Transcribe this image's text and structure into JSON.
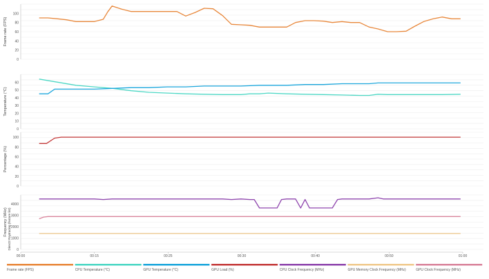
{
  "chart_data": {
    "type": "line",
    "x_ticks": [
      "00:00",
      "00:15",
      "00:25",
      "00:30",
      "00:40",
      "00:50",
      "01:00"
    ],
    "legend_placement": "bottom",
    "grid": true,
    "x_range": [
      0,
      60
    ],
    "panels": [
      {
        "ylabel": "Frame rate (FPS)",
        "ylim": [
          0,
          120
        ],
        "y_ticks": [
          "0",
          "20",
          "40",
          "60",
          "80",
          "100"
        ],
        "series": [
          {
            "name": "Frame rate (FPS)",
            "color": "#e8873a",
            "x": [
              2.5,
              3.7,
              5.0,
              6.2,
              7.5,
              8.7,
              10.0,
              11.2,
              11.8,
              12.4,
              13.7,
              15.0,
              17.4,
              19.9,
              21.2,
              22.4,
              23.7,
              24.9,
              26.1,
              27.4,
              28.6,
              29.9,
              31.1,
              32.4,
              33.6,
              34.8,
              36.1,
              37.3,
              38.6,
              39.8,
              41.1,
              42.3,
              43.6,
              44.8,
              46.0,
              47.3,
              48.5,
              49.8,
              51.0,
              52.3,
              53.5,
              54.7,
              56.0,
              57.2,
              58.5,
              59.7
            ],
            "values": [
              90,
              90,
              88,
              86,
              82,
              82,
              82,
              87,
              103,
              116,
              109,
              104,
              104,
              104,
              104,
              94,
              102,
              111,
              110,
              95,
              76,
              75,
              74,
              70,
              70,
              70,
              70,
              80,
              84,
              84,
              83,
              80,
              82,
              80,
              80,
              70,
              66,
              60,
              60,
              61,
              72,
              82,
              88,
              92,
              88,
              88
            ]
          }
        ]
      },
      {
        "ylabel": "Temperature (°C)",
        "ylim": [
          0,
          70
        ],
        "y_ticks": [
          "0",
          "10",
          "20",
          "30",
          "40",
          "50",
          "60"
        ],
        "series": [
          {
            "name": "CPU Temperature (°C)",
            "color": "#4bd7c4",
            "x": [
              2.5,
              5.0,
              7.5,
              10.0,
              12.5,
              15.0,
              17.4,
              19.9,
              22.4,
              24.9,
              27.4,
              29.9,
              31.1,
              32.4,
              33.6,
              36.1,
              38.6,
              41.1,
              43.6,
              46.0,
              47.3,
              48.5,
              49.8,
              51.0,
              52.3,
              54.7,
              57.2,
              59.7
            ],
            "values": [
              64,
              60,
              56,
              54,
              52,
              49,
              47,
              46,
              45,
              44.5,
              44,
              44,
              45,
              45,
              46,
              45,
              44.5,
              44,
              43.5,
              43,
              43,
              44.5,
              44,
              44,
              44,
              44,
              44,
              44.5
            ]
          },
          {
            "name": "GPU Temperature (°C)",
            "color": "#1aa6dc",
            "x": [
              2.5,
              3.7,
              4.6,
              7.5,
              10.0,
              12.5,
              15.0,
              17.4,
              19.9,
              22.4,
              24.9,
              27.4,
              29.9,
              32.4,
              33.6,
              36.1,
              38.6,
              41.1,
              43.6,
              46.0,
              47.3,
              48.5,
              49.8,
              51.0,
              52.3,
              53.5,
              54.7,
              57.2,
              59.7
            ],
            "values": [
              45,
              45,
              51,
              51,
              51,
              52,
              53,
              53,
              54,
              54,
              55,
              55,
              55,
              56,
              56,
              56,
              57,
              57,
              58,
              58,
              58,
              59,
              59,
              59,
              59,
              59,
              59,
              59,
              59
            ]
          }
        ]
      },
      {
        "ylabel": "Percentage (%)",
        "ylim": [
          0,
          110
        ],
        "y_ticks": [
          "0",
          "20",
          "40",
          "60",
          "80",
          "100"
        ],
        "series": [
          {
            "name": "GPU Load (%)",
            "color": "#c43a3a",
            "x": [
              2.5,
              3.5,
              4.6,
              5.5,
              10.0,
              20.0,
              30.0,
              40.0,
              50.0,
              59.7
            ],
            "values": [
              87,
              87,
              98,
              100,
              100,
              100,
              100,
              100,
              100,
              100
            ]
          }
        ]
      },
      {
        "ylabel": "Frequency (MHz)",
        "ylabel2": "Direct3 Raytracing (feature list)",
        "ylim": [
          0,
          4800
        ],
        "y_ticks": [
          "0",
          "1000",
          "2000",
          "3000",
          "4000"
        ],
        "series": [
          {
            "name": "CPU Clock Frequency (MHz)",
            "color": "#8e44ad",
            "x": [
              2.5,
              5.0,
              7.5,
              10.0,
              11.2,
              12.4,
              15.0,
              17.4,
              19.9,
              22.4,
              24.9,
              27.4,
              28.6,
              29.9,
              31.1,
              31.7,
              32.4,
              33.6,
              34.8,
              35.4,
              36.1,
              37.3,
              38.0,
              38.6,
              39.2,
              39.8,
              41.1,
              42.3,
              43.0,
              43.6,
              44.8,
              46.0,
              47.3,
              48.5,
              49.2,
              49.8,
              51.0,
              53.5,
              56.0,
              59.7
            ],
            "values": [
              4450,
              4450,
              4450,
              4450,
              4400,
              4450,
              4450,
              4450,
              4450,
              4450,
              4450,
              4450,
              4400,
              4450,
              4400,
              4400,
              3650,
              3650,
              3650,
              4400,
              4450,
              4450,
              3650,
              4400,
              3650,
              3650,
              3650,
              3650,
              4400,
              4450,
              4450,
              4450,
              4450,
              4550,
              4450,
              4450,
              4450,
              4450,
              4450,
              4450
            ]
          },
          {
            "name": "GPU Memory Clock Frequency (MHz)",
            "color": "#f0c98c",
            "x": [
              2.5,
              10.0,
              20.0,
              30.0,
              40.0,
              50.0,
              59.7
            ],
            "values": [
              1400,
              1400,
              1400,
              1400,
              1400,
              1400,
              1400
            ]
          },
          {
            "name": "GPU Clock Frequency (MHz)",
            "color": "#d9839b",
            "x": [
              2.5,
              3.1,
              3.7,
              5.0,
              10.0,
              20.0,
              30.0,
              40.0,
              50.0,
              59.7
            ],
            "values": [
              2700,
              2850,
              2900,
              2900,
              2900,
              2900,
              2900,
              2900,
              2900,
              2900
            ]
          }
        ]
      }
    ]
  },
  "legend": [
    {
      "label": "Frame rate (FPS)",
      "color": "#e8873a"
    },
    {
      "label": "CPU Temperature (°C)",
      "color": "#4bd7c4"
    },
    {
      "label": "GPU Temperature (°C)",
      "color": "#1aa6dc"
    },
    {
      "label": "GPU Load (%)",
      "color": "#c43a3a"
    },
    {
      "label": "CPU Clock Frequency (MHz)",
      "color": "#8e44ad"
    },
    {
      "label": "GPU Memory Clock Frequency (MHz)",
      "color": "#f0c98c"
    },
    {
      "label": "GPU Clock Frequency (MHz)",
      "color": "#d9839b"
    }
  ]
}
